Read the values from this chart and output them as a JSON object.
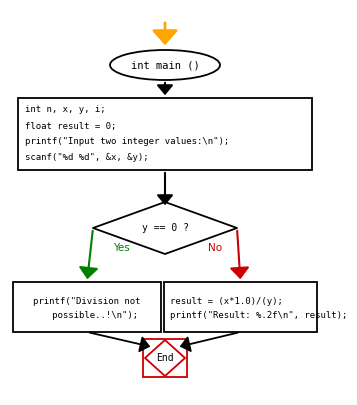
{
  "bg_color": "#ffffff",
  "arrow_color_start": "#FFA500",
  "arrow_color_black": "#000000",
  "arrow_color_yes": "#008000",
  "arrow_color_no": "#cc0000",
  "ellipse_text": "int main ()",
  "rect1_line1": "int n, x, y, i;",
  "rect1_line2": "float result = 0;",
  "rect1_line3": "printf(\"Input two integer values:\\n\");",
  "rect1_line4": "scanf(\"%d %d\", &x, &y);",
  "diamond_text": "y == 0 ?",
  "rect_yes_line1": "printf(\"Division not",
  "rect_yes_line2": "   possible..!\\n\");",
  "rect_no_line1": "result = (x*1.0)/(y);",
  "rect_no_line2": "printf(\"Result: %.2f\\n\", result);",
  "end_text": "End",
  "yes_label": "Yes",
  "no_label": "No"
}
